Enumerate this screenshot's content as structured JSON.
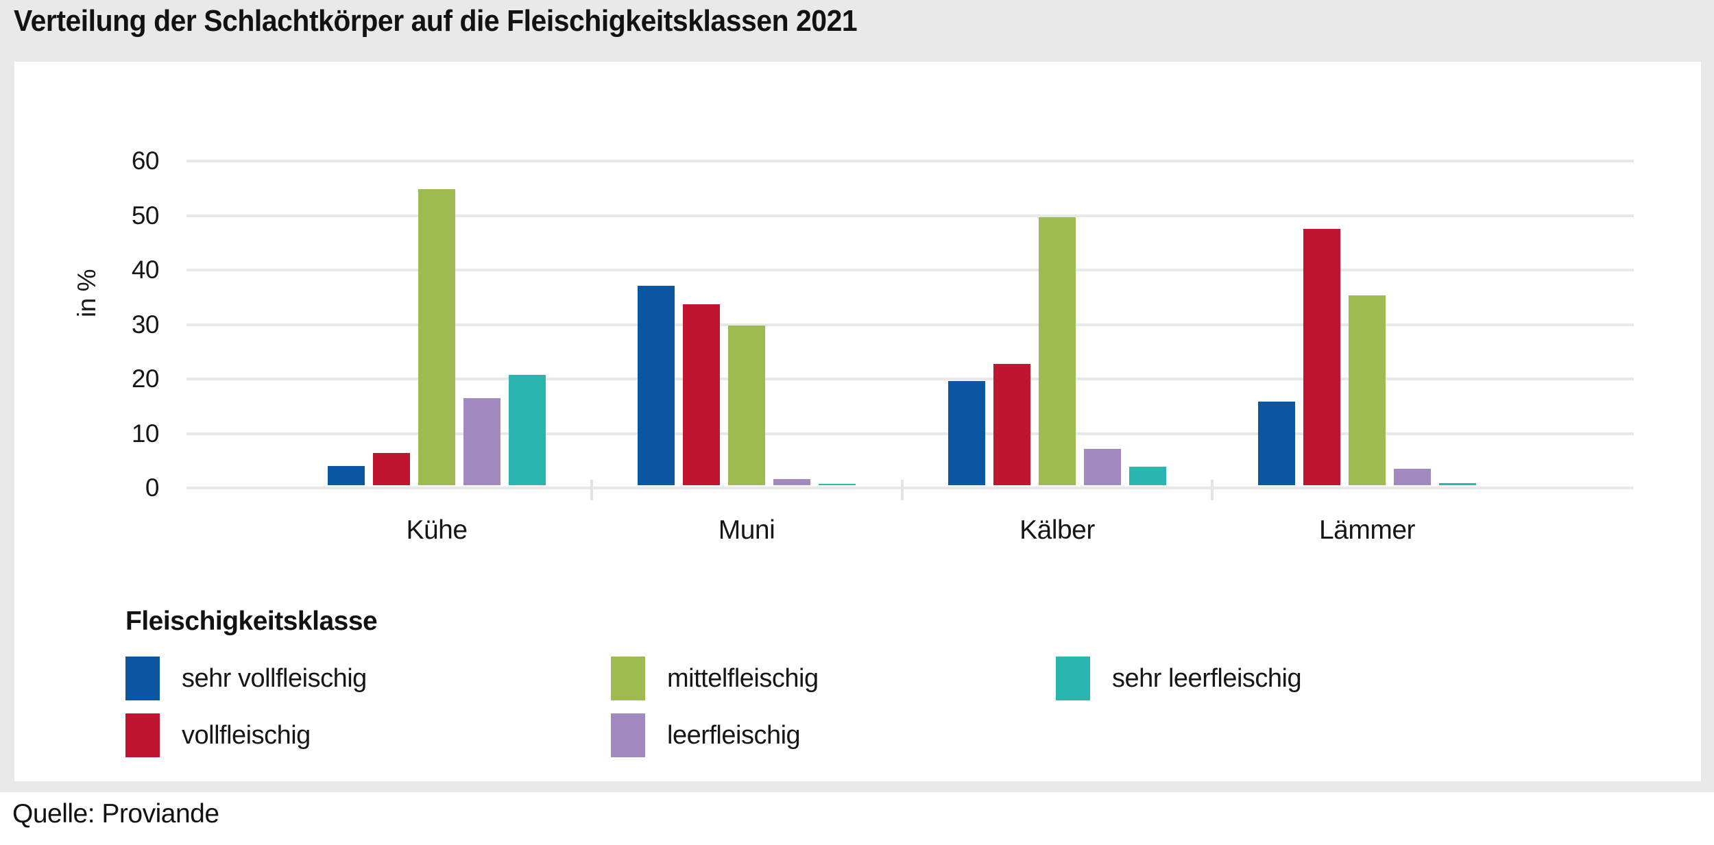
{
  "title": "Verteilung der Schlachtkörper auf die Fleischigkeitsklassen 2021",
  "source": "Quelle: Proviande",
  "y_axis": {
    "label": "in %",
    "ticks": [
      0,
      10,
      20,
      30,
      40,
      50,
      60
    ]
  },
  "legend": {
    "title": "Fleischigkeitsklasse"
  },
  "colors": {
    "page_background": "#e9e9e9",
    "panel_background": "#ffffff",
    "gridline": "#e8e8e8",
    "text": "#161616"
  },
  "chart_data": {
    "type": "bar",
    "title": "Verteilung der Schlachtkörper auf die Fleischigkeitsklassen 2021",
    "xlabel": "",
    "ylabel": "in %",
    "ylim": [
      0,
      60
    ],
    "grid": true,
    "legend_position": "bottom",
    "categories": [
      "Kühe",
      "Muni",
      "Kälber",
      "Lämmer"
    ],
    "series": [
      {
        "name": "sehr vollfleischig",
        "color": "#0b56a2",
        "values": [
          3.5,
          36.6,
          19.1,
          15.4
        ]
      },
      {
        "name": "vollfleischig",
        "color": "#c01530",
        "values": [
          5.9,
          33.2,
          22.3,
          47.1
        ]
      },
      {
        "name": "mittelfleischig",
        "color": "#9dbb51",
        "values": [
          54.4,
          29.3,
          49.2,
          34.8
        ]
      },
      {
        "name": "leerfleischig",
        "color": "#a28ac1",
        "values": [
          16.0,
          1.1,
          6.7,
          3.0
        ]
      },
      {
        "name": "sehr leerfleischig",
        "color": "#2ab5b0",
        "values": [
          20.2,
          0.3,
          3.4,
          0.4
        ]
      }
    ]
  }
}
